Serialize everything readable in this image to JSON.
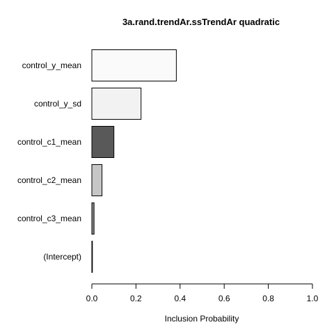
{
  "chart_data": {
    "type": "bar",
    "orientation": "horizontal",
    "title": "3a.rand.trendAr.ssTrendAr quadratic",
    "xlabel": "Inclusion Probability",
    "ylabel": "",
    "xlim": [
      0,
      1
    ],
    "x_ticks": [
      "0.0",
      "0.2",
      "0.4",
      "0.6",
      "0.8",
      "1.0"
    ],
    "categories": [
      "control_y_mean",
      "control_y_sd",
      "control_c1_mean",
      "control_c2_mean",
      "control_c3_mean",
      "(Intercept)"
    ],
    "values": [
      0.383,
      0.223,
      0.1,
      0.046,
      0.01,
      0.0
    ],
    "colors": [
      "#fafafa",
      "#f2f2f2",
      "#595959",
      "#c6c6c6",
      "#8a8a8a",
      "#ffffff"
    ],
    "grid": false,
    "legend": "none"
  }
}
